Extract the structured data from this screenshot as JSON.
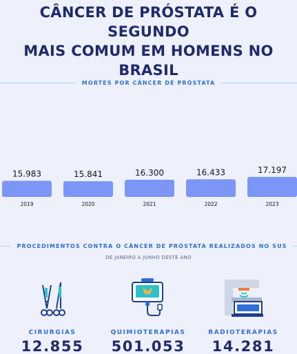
{
  "headline": {
    "line1": "CÂNCER DE PRÓSTATA É O SEGUNDO",
    "line2": "MAIS COMUM EM HOMENS NO BRASIL"
  },
  "colors": {
    "bar": "#7b96f7",
    "navy": "#1f2a6b",
    "accent_blue": "#2f6fd6",
    "divider": "#9fd6f0",
    "background": "#eef0fb"
  },
  "chart_data": {
    "type": "bar",
    "title": "MORTES POR CÂNCER DE PRÓSTATA",
    "categories": [
      "2019",
      "2020",
      "2021",
      "2022",
      "2023"
    ],
    "values": [
      15983,
      15841,
      16300,
      16433,
      17197
    ],
    "value_labels": [
      "15.983",
      "15.841",
      "16.300",
      "16.433",
      "17.197"
    ],
    "xlabel": "",
    "ylabel": "",
    "grid": false,
    "legend": "none"
  },
  "procedures": {
    "title": "PROCEDIMENTOS CONTRA O CÂNCER DE PRÓSTATA REALIZADOS NO SUS",
    "subtitle": "DE JANEIRO A JUNHO DESTE ANO",
    "items": [
      {
        "label": "CIRURGIAS",
        "value": "12.855",
        "icon": "surgical-scissors-icon"
      },
      {
        "label": "QUIMIOTERAPIAS",
        "value": "501.053",
        "icon": "iv-bag-icon"
      },
      {
        "label": "RADIOTERAPIAS",
        "value": "14.281",
        "icon": "radiotherapy-machine-icon"
      }
    ]
  }
}
